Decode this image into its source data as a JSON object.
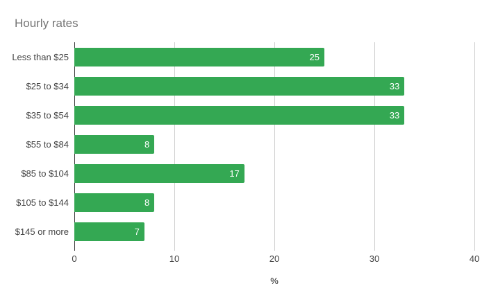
{
  "title": "Hourly rates",
  "colors": {
    "background": "#ffffff",
    "bar": "#34a853",
    "title_text": "#757575",
    "axis_label": "#424242",
    "gridline": "#cccccc",
    "baseline": "#333333",
    "value_label": "#ffffff"
  },
  "chart_data": {
    "type": "bar",
    "orientation": "horizontal",
    "title": "Hourly rates",
    "categories": [
      "Less than $25",
      "$25 to $34",
      "$35 to $54",
      "$55 to $84",
      "$85 to $104",
      "$105 to $144",
      "$145 or more"
    ],
    "values": [
      25,
      33,
      33,
      8,
      17,
      8,
      7
    ],
    "value_labels": [
      "25",
      "33",
      "33",
      "8",
      "17",
      "8",
      "7"
    ],
    "value_label_position": "inside-end",
    "xlabel": "%",
    "ylabel": "",
    "xlim": [
      0,
      40
    ],
    "xticks": [
      0,
      10,
      20,
      30,
      40
    ],
    "grid": true,
    "legend": "none",
    "bar_color": "#34a853"
  }
}
